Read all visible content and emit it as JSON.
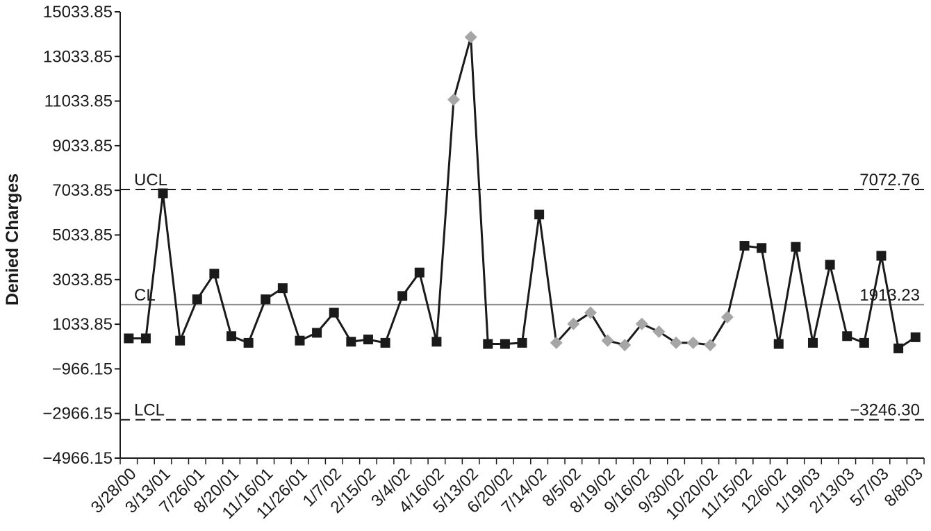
{
  "chart_data": {
    "type": "line",
    "ylabel": "Denied Charges",
    "ylim": [
      -4966.15,
      15033.85
    ],
    "yticks": [
      15033.85,
      13033.85,
      11033.85,
      9033.85,
      7033.85,
      5033.85,
      3033.85,
      1033.85,
      -966.15,
      -2966.15,
      -4966.15
    ],
    "ytick_labels": [
      "15033.85",
      "13033.85",
      "11033.85",
      "9033.85",
      "7033.85",
      "5033.85",
      "3033.85",
      "1033.85",
      "−966.15",
      "−2966.15",
      "−4966.15"
    ],
    "x_labels": [
      "3/28/00",
      "3/13/01",
      "7/26/01",
      "8/20/01",
      "11/16/01",
      "11/26/01",
      "1/7/02",
      "2/15/02",
      "3/4/02",
      "4/16/02",
      "5/13/02",
      "6/20/02",
      "7/14/02",
      "8/5/02",
      "8/19/02",
      "9/16/02",
      "9/30/02",
      "10/20/02",
      "11/15/02",
      "12/6/02",
      "1/19/03",
      "2/13/03",
      "5/7/03",
      "8/8/03"
    ],
    "values": [
      400,
      400,
      6900,
      300,
      2150,
      3300,
      500,
      200,
      2150,
      2650,
      300,
      650,
      1550,
      250,
      350,
      200,
      2300,
      3350,
      250,
      11100,
      13900,
      150,
      150,
      200,
      5950,
      200,
      1050,
      1550,
      300,
      100,
      1050,
      700,
      200,
      200,
      100,
      1350,
      4550,
      4450,
      150,
      4500,
      200,
      3700,
      500,
      200,
      4100,
      -50,
      450
    ],
    "point_styles": [
      "square",
      "square",
      "square",
      "square",
      "square",
      "square",
      "square",
      "square",
      "square",
      "square",
      "square",
      "square",
      "square",
      "square",
      "square",
      "square",
      "square",
      "square",
      "square",
      "diamond",
      "diamond",
      "square",
      "square",
      "square",
      "square",
      "diamond",
      "diamond",
      "diamond",
      "diamond",
      "diamond",
      "diamond",
      "diamond",
      "diamond",
      "diamond",
      "diamond",
      "diamond",
      "square",
      "square",
      "square",
      "square",
      "square",
      "square",
      "square",
      "square",
      "square",
      "square",
      "square"
    ],
    "reference_lines": [
      {
        "name": "UCL",
        "value": 7072.76,
        "value_label": "7072.76",
        "style": "dashed"
      },
      {
        "name": "CL",
        "value": 1913.23,
        "value_label": "1913.23",
        "style": "solid"
      },
      {
        "name": "LCL",
        "value": -3246.3,
        "value_label": "−3246.30",
        "style": "dashed"
      }
    ],
    "grid": false,
    "colors": {
      "line": "#1a1a1a",
      "normal_marker": "#1a1a1a",
      "special_marker": "#a6a6a6",
      "center_line": "#8c8c8c"
    }
  }
}
